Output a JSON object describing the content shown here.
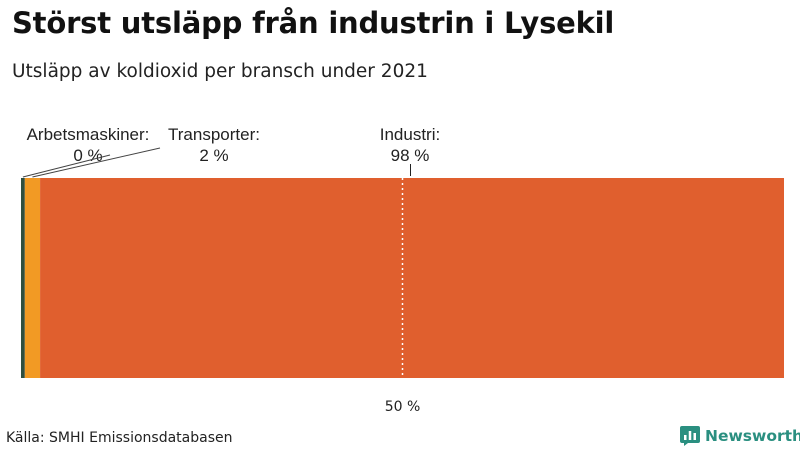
{
  "header": {
    "title": "Störst utsläpp från industrin i Lysekil",
    "subtitle": "Utsläpp av koldioxid per bransch under 2021"
  },
  "chart_data": {
    "type": "bar",
    "orientation": "stacked-horizontal",
    "categories": [
      "Arbetsmaskiner",
      "Transporter",
      "Industri"
    ],
    "series": [
      {
        "name": "Arbetsmaskiner",
        "value": 0.5,
        "label": "Arbetsmaskiner:",
        "value_label": "0 %",
        "color": "#2f4f3f"
      },
      {
        "name": "Transporter",
        "value": 2,
        "label": "Transporter:",
        "value_label": "2 %",
        "color": "#f29a24"
      },
      {
        "name": "Industri",
        "value": 97.5,
        "label": "Industri:",
        "value_label": "98 %",
        "color": "#e05f2e"
      }
    ],
    "xlim": [
      0,
      100
    ],
    "reference_line": {
      "value": 50,
      "label": "50 %"
    }
  },
  "footer": {
    "source": "Källa: SMHI Emissionsdatabasen",
    "brand": "Newsworthy",
    "brand_color": "#2a8f80"
  }
}
